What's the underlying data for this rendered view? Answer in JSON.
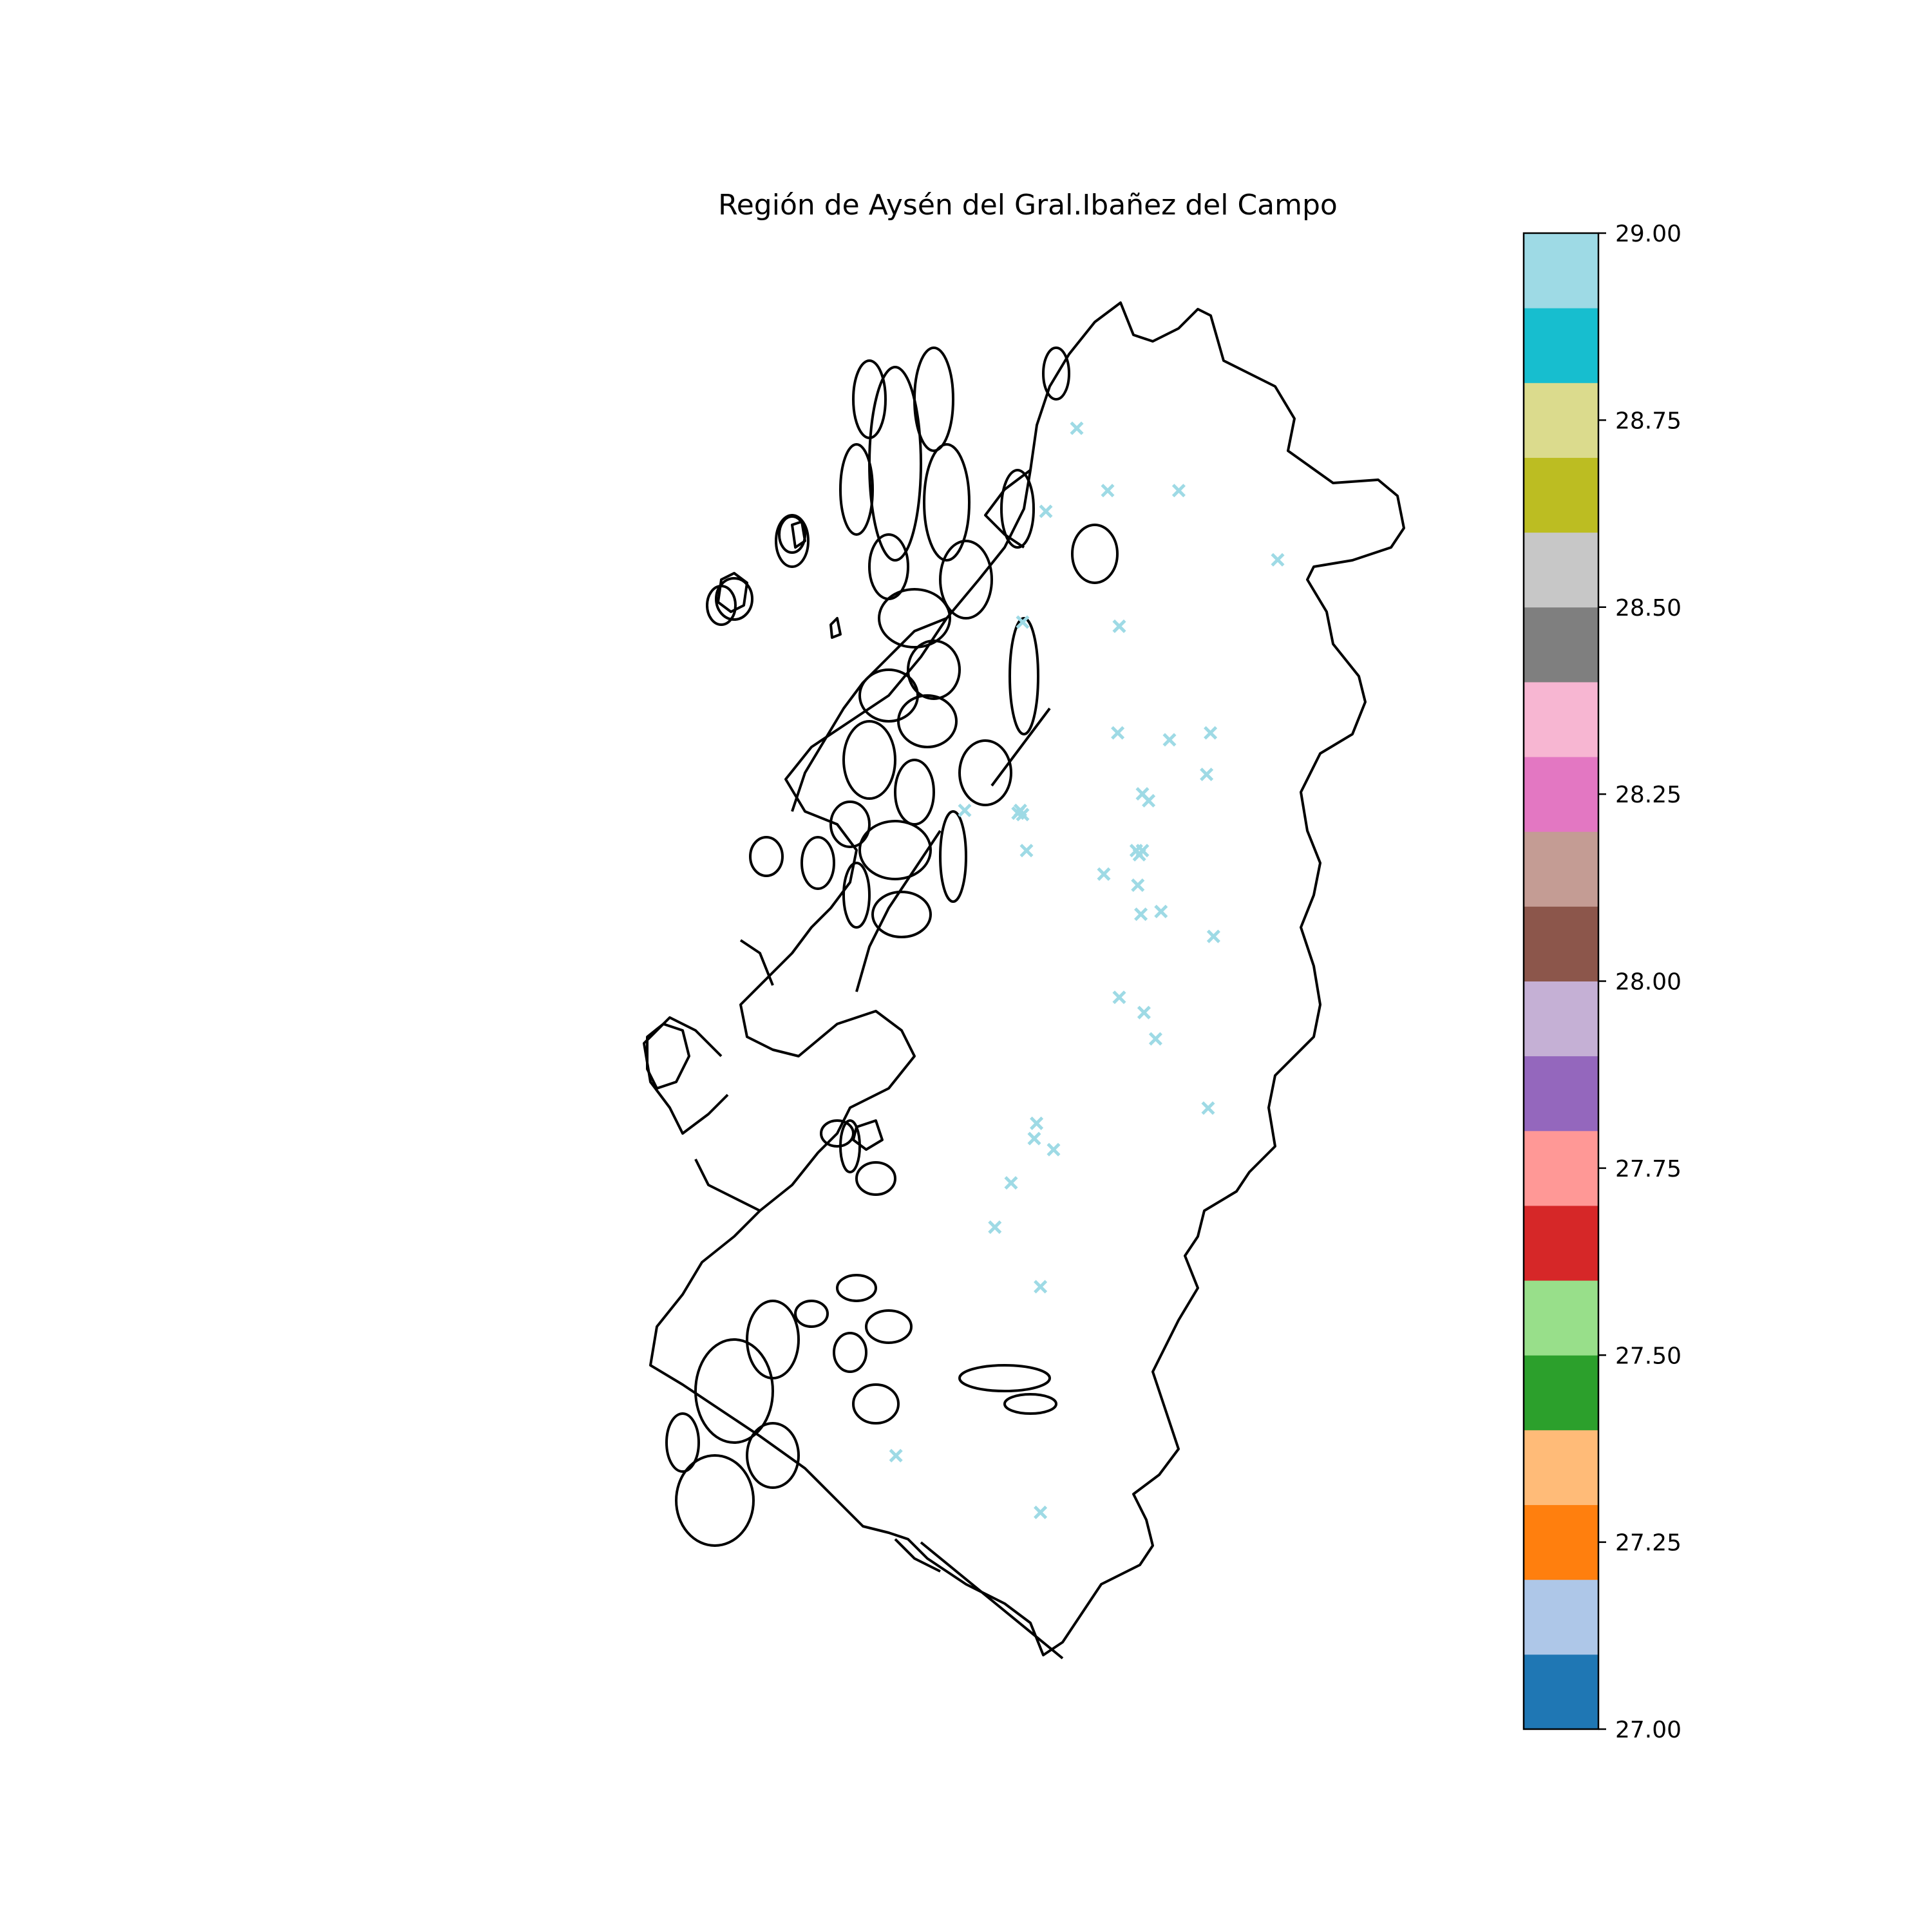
{
  "title": "Región de Aysén del Gral.Ibañez del Campo",
  "colorbar": {
    "min": 27.0,
    "max": 29.0,
    "tick_labels": [
      "27.00",
      "27.25",
      "27.50",
      "27.75",
      "28.00",
      "28.25",
      "28.50",
      "28.75",
      "29.00"
    ],
    "tick_values": [
      27.0,
      27.25,
      27.5,
      27.75,
      28.0,
      28.25,
      28.5,
      28.75,
      29.0
    ],
    "colors": [
      "#1f77b4",
      "#aec7e8",
      "#ff7f0e",
      "#ffbb78",
      "#2ca02c",
      "#98df8a",
      "#d62728",
      "#ff9896",
      "#9467bd",
      "#c5b0d5",
      "#8c564b",
      "#c49c94",
      "#e377c2",
      "#f7b6d2",
      "#7f7f7f",
      "#c7c7c7",
      "#bcbd22",
      "#dbdb8d",
      "#17becf",
      "#9edae5"
    ]
  },
  "marker": {
    "shape": "x",
    "color": "#9edae5",
    "value": 29.0
  },
  "map_outline_color": "#000000",
  "chart_data": {
    "type": "scatter",
    "title": "Región de Aysén del Gral.Ibañez del Campo",
    "xlabel": "",
    "ylabel": "",
    "points": [
      {
        "x": 0.56,
        "y": 0.1,
        "v": 29.0
      },
      {
        "x": 0.6,
        "y": 0.145,
        "v": 29.0
      },
      {
        "x": 0.692,
        "y": 0.145,
        "v": 29.0
      },
      {
        "x": 0.52,
        "y": 0.16,
        "v": 29.0
      },
      {
        "x": 0.82,
        "y": 0.195,
        "v": 29.0
      },
      {
        "x": 0.49,
        "y": 0.24,
        "v": 29.0
      },
      {
        "x": 0.615,
        "y": 0.243,
        "v": 29.0
      },
      {
        "x": 0.613,
        "y": 0.32,
        "v": 29.0
      },
      {
        "x": 0.68,
        "y": 0.325,
        "v": 29.0
      },
      {
        "x": 0.733,
        "y": 0.32,
        "v": 29.0
      },
      {
        "x": 0.728,
        "y": 0.35,
        "v": 29.0
      },
      {
        "x": 0.645,
        "y": 0.364,
        "v": 29.0
      },
      {
        "x": 0.653,
        "y": 0.369,
        "v": 29.0
      },
      {
        "x": 0.415,
        "y": 0.376,
        "v": 29.0
      },
      {
        "x": 0.487,
        "y": 0.376,
        "v": 29.0
      },
      {
        "x": 0.49,
        "y": 0.379,
        "v": 29.0
      },
      {
        "x": 0.484,
        "y": 0.378,
        "v": 29.0
      },
      {
        "x": 0.495,
        "y": 0.405,
        "v": 29.0
      },
      {
        "x": 0.637,
        "y": 0.405,
        "v": 29.0
      },
      {
        "x": 0.645,
        "y": 0.405,
        "v": 29.0
      },
      {
        "x": 0.641,
        "y": 0.408,
        "v": 29.0
      },
      {
        "x": 0.595,
        "y": 0.422,
        "v": 29.0
      },
      {
        "x": 0.639,
        "y": 0.43,
        "v": 29.0
      },
      {
        "x": 0.643,
        "y": 0.451,
        "v": 29.0
      },
      {
        "x": 0.669,
        "y": 0.449,
        "v": 29.0
      },
      {
        "x": 0.737,
        "y": 0.467,
        "v": 29.0
      },
      {
        "x": 0.615,
        "y": 0.511,
        "v": 29.0
      },
      {
        "x": 0.647,
        "y": 0.522,
        "v": 29.0
      },
      {
        "x": 0.662,
        "y": 0.541,
        "v": 29.0
      },
      {
        "x": 0.73,
        "y": 0.591,
        "v": 29.0
      },
      {
        "x": 0.508,
        "y": 0.602,
        "v": 29.0
      },
      {
        "x": 0.505,
        "y": 0.613,
        "v": 29.0
      },
      {
        "x": 0.53,
        "y": 0.621,
        "v": 29.0
      },
      {
        "x": 0.475,
        "y": 0.645,
        "v": 29.0
      },
      {
        "x": 0.454,
        "y": 0.677,
        "v": 29.0
      },
      {
        "x": 0.513,
        "y": 0.72,
        "v": 29.0
      },
      {
        "x": 0.326,
        "y": 0.842,
        "v": 29.0
      },
      {
        "x": 0.513,
        "y": 0.883,
        "v": 29.0
      }
    ],
    "legend": "colorbar-right",
    "grid": false
  }
}
